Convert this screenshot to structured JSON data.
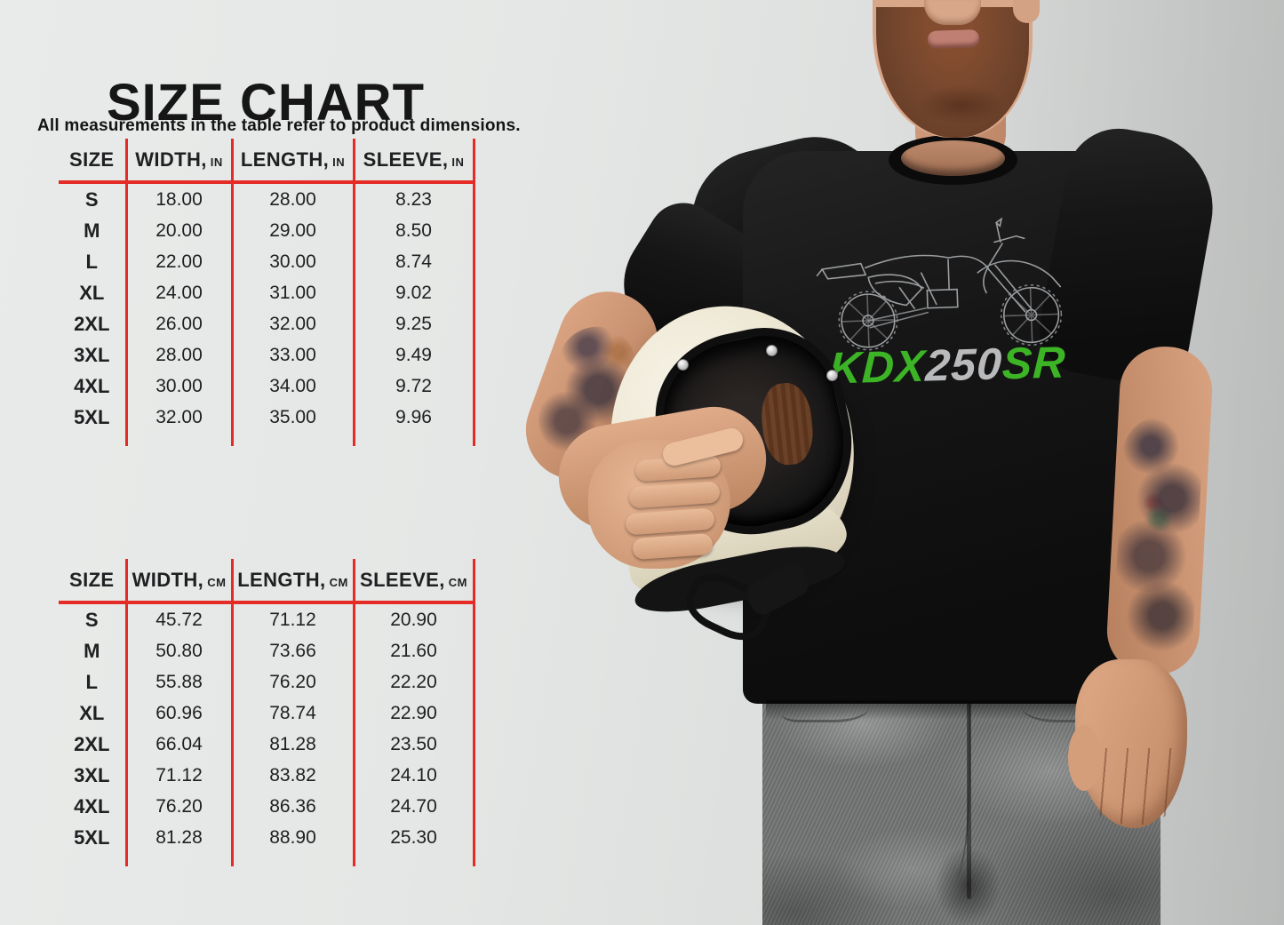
{
  "page": {
    "title": "SIZE CHART",
    "subtitle": "All measurements in the table refer to product dimensions."
  },
  "tables": [
    {
      "id": "inches",
      "columns": [
        {
          "label": "SIZE",
          "unit": ""
        },
        {
          "label": "WIDTH,",
          "unit": "IN"
        },
        {
          "label": "LENGTH,",
          "unit": "IN"
        },
        {
          "label": "SLEEVE,",
          "unit": "IN"
        }
      ],
      "rows": [
        [
          "S",
          "18.00",
          "28.00",
          "8.23"
        ],
        [
          "M",
          "20.00",
          "29.00",
          "8.50"
        ],
        [
          "L",
          "22.00",
          "30.00",
          "8.74"
        ],
        [
          "XL",
          "24.00",
          "31.00",
          "9.02"
        ],
        [
          "2XL",
          "26.00",
          "32.00",
          "9.25"
        ],
        [
          "3XL",
          "28.00",
          "33.00",
          "9.49"
        ],
        [
          "4XL",
          "30.00",
          "34.00",
          "9.72"
        ],
        [
          "5XL",
          "32.00",
          "35.00",
          "9.96"
        ]
      ]
    },
    {
      "id": "centimeters",
      "columns": [
        {
          "label": "SIZE",
          "unit": ""
        },
        {
          "label": "WIDTH,",
          "unit": "CM"
        },
        {
          "label": "LENGTH,",
          "unit": "CM"
        },
        {
          "label": "SLEEVE,",
          "unit": "CM"
        }
      ],
      "rows": [
        [
          "S",
          "45.72",
          "71.12",
          "20.90"
        ],
        [
          "M",
          "50.80",
          "73.66",
          "21.60"
        ],
        [
          "L",
          "55.88",
          "76.20",
          "22.20"
        ],
        [
          "XL",
          "60.96",
          "78.74",
          "22.90"
        ],
        [
          "2XL",
          "66.04",
          "81.28",
          "23.50"
        ],
        [
          "3XL",
          "71.12",
          "83.82",
          "24.10"
        ],
        [
          "4XL",
          "76.20",
          "86.36",
          "24.70"
        ],
        [
          "5XL",
          "81.28",
          "88.90",
          "25.30"
        ]
      ]
    }
  ],
  "photo": {
    "tshirt_graphic": {
      "parts": [
        {
          "text": "KDX",
          "color": "#3cb426"
        },
        {
          "text": "250",
          "color": "#b9babc"
        },
        {
          "text": "SR",
          "color": "#3cb426"
        }
      ]
    }
  },
  "colors": {
    "line_red": "#e42b26",
    "background_gray": "#e4e6e5",
    "brand_green": "#3cb426",
    "brand_silver": "#b9babc",
    "helmet_cream": "#ece7d6",
    "shirt_black": "#141414"
  }
}
